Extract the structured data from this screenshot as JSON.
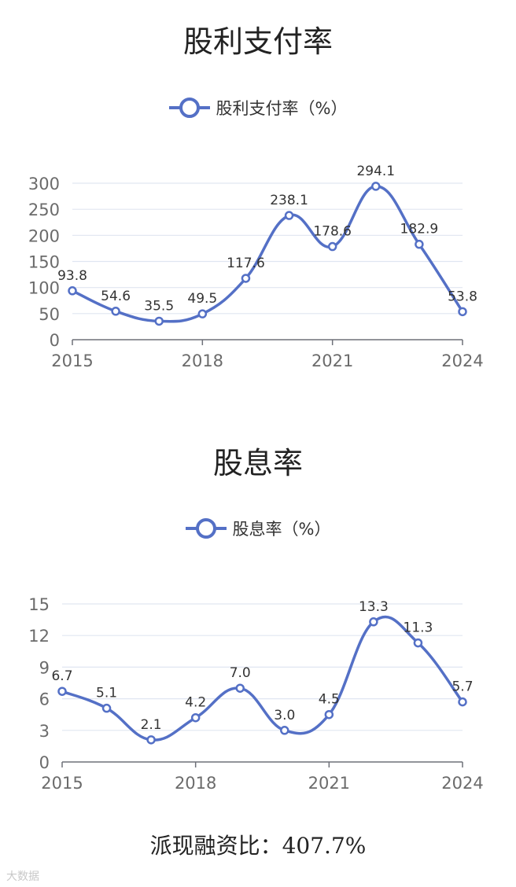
{
  "charts": [
    {
      "title": "股利支付率",
      "legend": "股利支付率（%）"
    },
    {
      "title": "股息率",
      "legend": "股息率（%）"
    }
  ],
  "footer": "派现融资比：407.7%",
  "watermark": "大数据",
  "colors": {
    "series": "#5470c6",
    "grid": "#e0e6f1",
    "axis": "#6e7079"
  },
  "chart_data": [
    {
      "type": "line",
      "title": "股利支付率",
      "x": [
        2015,
        2016,
        2017,
        2018,
        2019,
        2020,
        2021,
        2022,
        2023,
        2024
      ],
      "x_tick_labels": [
        "2015",
        "2018",
        "2021",
        "2024"
      ],
      "series": [
        {
          "name": "股利支付率（%）",
          "values": [
            93.8,
            54.6,
            35.5,
            49.5,
            117.6,
            238.1,
            178.6,
            294.1,
            182.9,
            53.8
          ],
          "labels": [
            "93.8",
            "54.6",
            "35.5",
            "49.5",
            "117.6",
            "238.1",
            "178.6",
            "294.1",
            "182.9",
            "53.8"
          ]
        }
      ],
      "ylim": [
        0,
        300
      ],
      "yticks": [
        0,
        50,
        100,
        150,
        200,
        250,
        300
      ],
      "smooth": true,
      "grid": true,
      "legend_position": "top-center"
    },
    {
      "type": "line",
      "title": "股息率",
      "x": [
        2015,
        2016,
        2017,
        2018,
        2019,
        2020,
        2021,
        2022,
        2023,
        2024
      ],
      "x_tick_labels": [
        "2015",
        "2018",
        "2021",
        "2024"
      ],
      "series": [
        {
          "name": "股息率（%）",
          "values": [
            6.7,
            5.1,
            2.1,
            4.2,
            7.0,
            3.0,
            4.5,
            13.3,
            11.3,
            5.7
          ],
          "labels": [
            "6.7",
            "5.1",
            "2.1",
            "4.2",
            "7.0",
            "3.0",
            "4.5",
            "13.3",
            "11.3",
            "5.7"
          ]
        }
      ],
      "ylim": [
        0,
        15
      ],
      "yticks": [
        0,
        3,
        6,
        9,
        12,
        15
      ],
      "smooth": true,
      "grid": true,
      "legend_position": "top-center"
    }
  ]
}
